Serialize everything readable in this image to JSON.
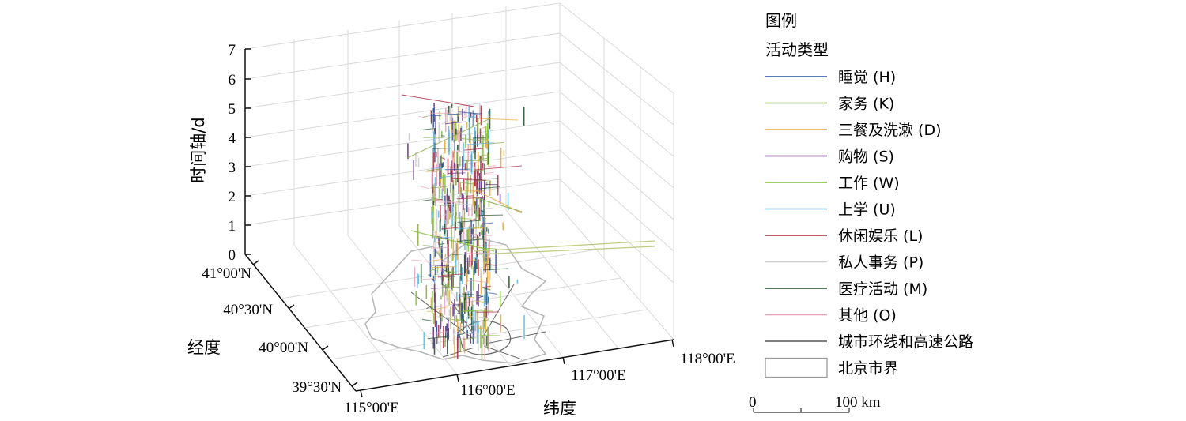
{
  "chart_data": {
    "type": "scatter",
    "subtype": "3d space-time path",
    "zlabel": "时间轴/d",
    "zlim": [
      0,
      7
    ],
    "z_ticks": [
      "0",
      "1",
      "2",
      "3",
      "4",
      "5",
      "6",
      "7"
    ],
    "xlabel": "纬度",
    "x_ticks": [
      "115°00'E",
      "116°00'E",
      "117°00'E",
      "118°00'E"
    ],
    "ylabel": "经度",
    "y_ticks": [
      "39°30'N",
      "40°00'N",
      "40°30'N",
      "41°00'N"
    ],
    "grid": true,
    "legend_placement": "right",
    "legend": {
      "title": "图例",
      "subtitle": "活动类型",
      "items": [
        {
          "label": "睡觉 (H)",
          "color": "#2b4fa0"
        },
        {
          "label": "家务 (K)",
          "color": "#8aa84a"
        },
        {
          "label": "三餐及洗漱 (D)",
          "color": "#e8a838"
        },
        {
          "label": "购物 (S)",
          "color": "#5a2a82"
        },
        {
          "label": "工作 (W)",
          "color": "#86bf3c"
        },
        {
          "label": "上学 (U)",
          "color": "#5cb8e0"
        },
        {
          "label": "休闲娱乐 (L)",
          "color": "#a8243c"
        },
        {
          "label": "私人事务 (P)",
          "color": "#cccccc"
        },
        {
          "label": "医疗活动 (M)",
          "color": "#1f4f2a"
        },
        {
          "label": "其他 (O)",
          "color": "#e8a0b8"
        },
        {
          "label": "城市环线和高速公路",
          "color": "#555555"
        },
        {
          "label": "北京市界",
          "color": "#999999"
        }
      ],
      "scalebar": {
        "start": "0",
        "end": "100 km"
      }
    }
  }
}
